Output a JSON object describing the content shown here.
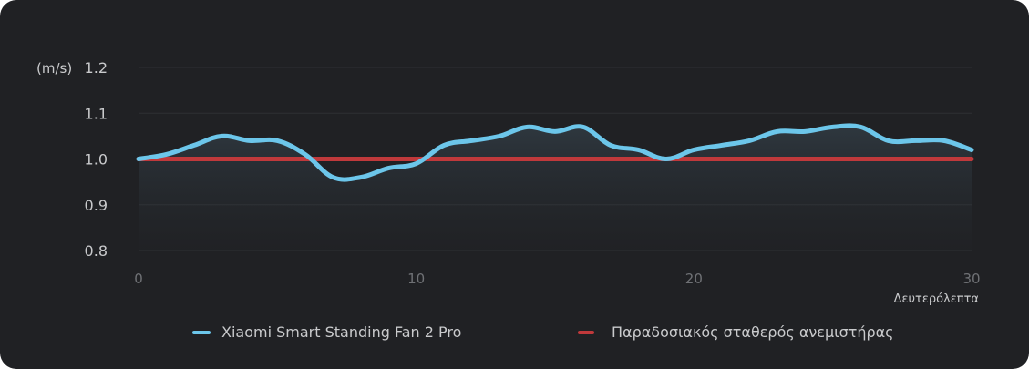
{
  "chart_data": {
    "type": "line",
    "title": "",
    "ylabel": "(m/s)",
    "xlabel": "Δευτερόλεπτα",
    "xlim": [
      0,
      30
    ],
    "ylim": [
      0.8,
      1.2
    ],
    "x_ticks": [
      "0",
      "10",
      "20",
      "30"
    ],
    "y_ticks": [
      "1.2",
      "1.1",
      "1.0",
      "0.9",
      "0.8"
    ],
    "grid": true,
    "legend_position": "bottom",
    "series": [
      {
        "name": "Xiaomi Smart Standing Fan 2 Pro",
        "color": "#6cc6ea",
        "x": [
          0,
          1,
          2,
          3,
          4,
          5,
          6,
          7,
          8,
          9,
          10,
          11,
          12,
          13,
          14,
          15,
          16,
          17,
          18,
          19,
          20,
          21,
          22,
          23,
          24,
          25,
          26,
          27,
          28,
          29,
          30
        ],
        "values": [
          1.0,
          1.01,
          1.03,
          1.05,
          1.04,
          1.04,
          1.01,
          0.96,
          0.96,
          0.98,
          0.99,
          1.03,
          1.04,
          1.05,
          1.07,
          1.06,
          1.07,
          1.03,
          1.02,
          1.0,
          1.02,
          1.03,
          1.04,
          1.06,
          1.06,
          1.07,
          1.07,
          1.04,
          1.04,
          1.04,
          1.02
        ]
      },
      {
        "name": "Παραδοσιακός σταθερός ανεμιστήρας",
        "color": "#c0393b",
        "x": [
          0,
          30
        ],
        "values": [
          1.0,
          1.0
        ]
      }
    ]
  }
}
